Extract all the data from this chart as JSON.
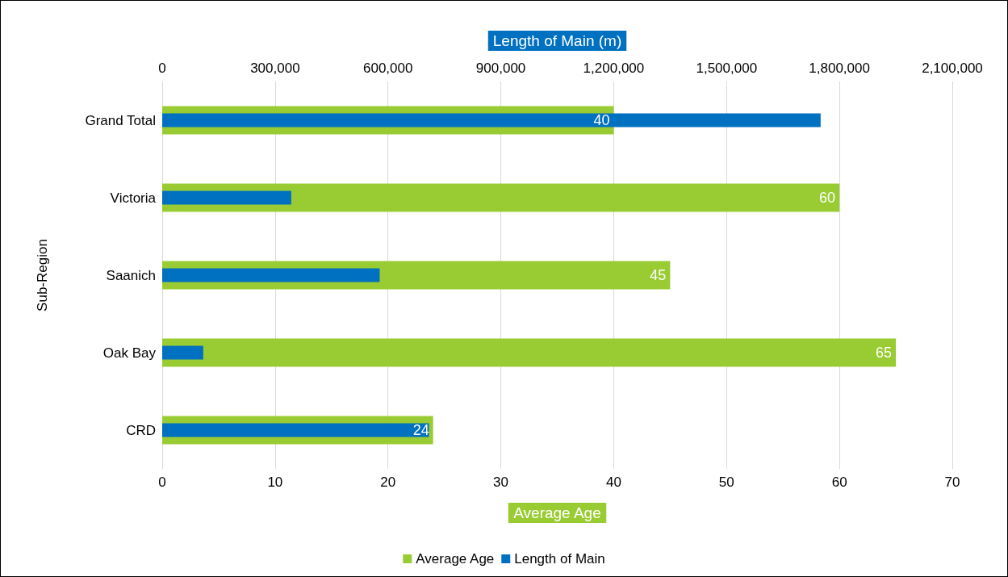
{
  "chart_data": {
    "type": "bar",
    "orientation": "horizontal",
    "xlabel": "Average Age",
    "x2label": "Length of Main (m)",
    "ylabel": "Sub-Region",
    "categories": [
      "Grand Total",
      "Victoria",
      "Saanich",
      "Oak Bay",
      "CRD"
    ],
    "series": [
      {
        "name": "Average Age",
        "color": "#99cc33",
        "values": [
          40,
          60,
          45,
          65,
          24
        ],
        "value_labels": [
          "40",
          "60",
          "45",
          "65",
          "24"
        ]
      },
      {
        "name": "Length of Main",
        "color": "#0070c0",
        "axis": "x2",
        "values": [
          1750000,
          343000,
          578000,
          109000,
          709000
        ]
      }
    ],
    "xlim": [
      0,
      70
    ],
    "xticks": [
      0,
      10,
      20,
      30,
      40,
      50,
      60,
      70
    ],
    "x2lim": [
      0,
      2100000
    ],
    "x2ticks": [
      0,
      {
        "value": 300000,
        "label": "300,000"
      },
      {
        "value": 600000,
        "label": "600,000"
      },
      {
        "value": 900000,
        "label": "900,000"
      },
      {
        "value": 1200000,
        "label": "1,200,000"
      },
      {
        "value": 1500000,
        "label": "1,500,000"
      },
      {
        "value": 1800000,
        "label": "1,800,000"
      },
      {
        "value": 2100000,
        "label": "2,100,000"
      }
    ],
    "grid": "x",
    "legend": "bottom"
  }
}
